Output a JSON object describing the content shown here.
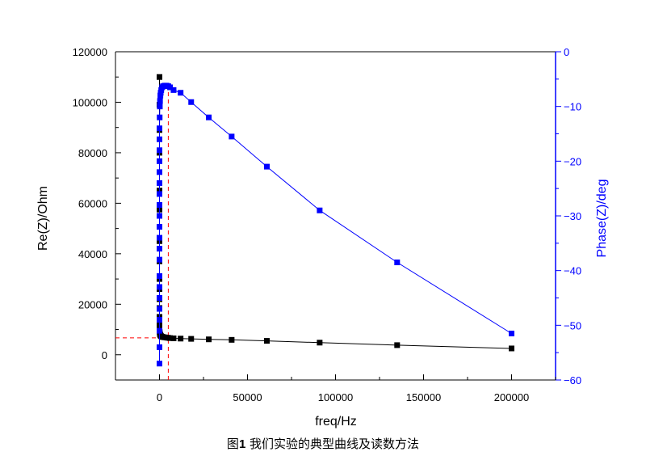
{
  "chart_data": {
    "type": "scatter",
    "xlabel": "freq/Hz",
    "ylabel_left": "Re(Z)/Ohm",
    "ylabel_right": "Phase(Z)/deg",
    "xlim": [
      -25000,
      225000
    ],
    "ylim_left": [
      -10000,
      120000
    ],
    "ylim_right": [
      -60,
      0
    ],
    "x_ticks": [
      0,
      50000,
      100000,
      150000,
      200000
    ],
    "y_left_ticks": [
      0,
      20000,
      40000,
      60000,
      80000,
      100000,
      120000
    ],
    "y_right_ticks": [
      0,
      -10,
      -20,
      -30,
      -40,
      -50,
      -60
    ],
    "grid": false,
    "series": [
      {
        "axis": "left",
        "color": "#000000",
        "x": [
          0,
          0,
          0,
          0,
          0,
          0,
          0,
          0,
          0,
          0,
          0,
          0,
          0,
          0,
          0,
          0,
          100,
          200,
          300,
          500,
          700,
          1000,
          1500,
          2000,
          3000,
          4000,
          5000,
          6000,
          8000,
          12000,
          18000,
          28000,
          41000,
          61000,
          91000,
          135000,
          200000
        ],
        "y": [
          110000,
          99000,
          89000,
          80000,
          65000,
          57500,
          45000,
          37000,
          30000,
          26000,
          22000,
          18500,
          15000,
          13000,
          11000,
          10000,
          9000,
          8500,
          8000,
          7800,
          7500,
          7300,
          7100,
          7000,
          6900,
          6800,
          6700,
          6600,
          6500,
          6400,
          6300,
          6100,
          5900,
          5500,
          4800,
          3800,
          2500
        ]
      },
      {
        "axis": "right",
        "color": "#0000ff",
        "x": [
          0,
          0,
          0,
          0,
          0,
          0,
          0,
          0,
          0,
          0,
          0,
          0,
          0,
          0,
          0,
          0,
          0,
          0,
          0,
          0,
          0,
          100,
          200,
          300,
          500,
          700,
          1000,
          1500,
          2000,
          3000,
          4000,
          5000,
          6000,
          8000,
          12000,
          18000,
          28000,
          41000,
          61000,
          91000,
          135000,
          200000
        ],
        "y": [
          -57,
          -54,
          -51,
          -49,
          -47,
          -45,
          -43,
          -41,
          -38,
          -36,
          -34,
          -32,
          -30,
          -28,
          -26,
          -24,
          -22,
          -20,
          -18,
          -16,
          -14,
          -12,
          -10,
          -9,
          -8,
          -7.5,
          -7,
          -6.5,
          -6.3,
          -6.2,
          -6.2,
          -6.3,
          -6.5,
          -7,
          -7.5,
          -9.2,
          -12,
          -15.5,
          -21,
          -29,
          -38.5,
          -51.5
        ]
      }
    ],
    "reference_point": {
      "x": 5000,
      "y": 6700
    }
  },
  "caption": {
    "prefix": "图",
    "number": "1",
    "text": " 我们实验的典型曲线及读数方法"
  }
}
